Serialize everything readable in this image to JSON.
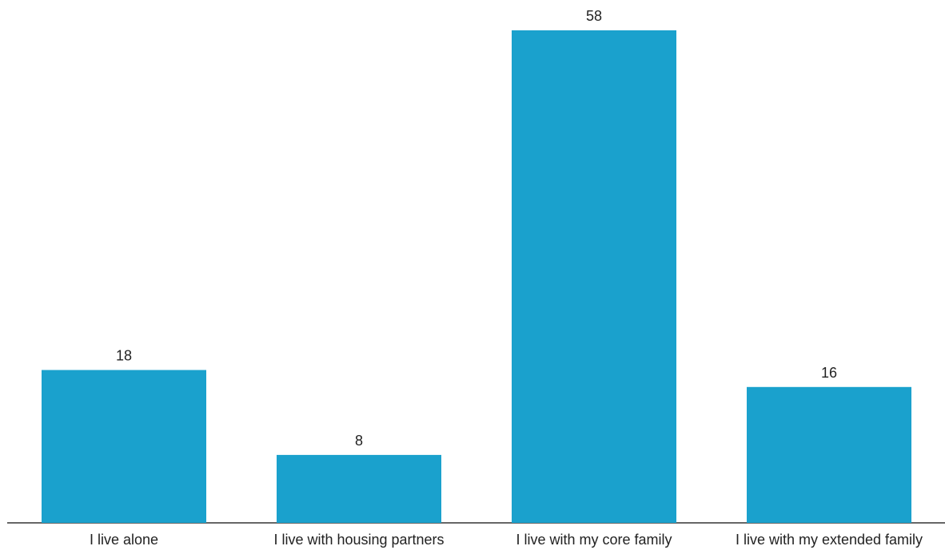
{
  "chart_data": {
    "type": "bar",
    "categories": [
      "I live alone",
      "I live with housing partners",
      "I live with my core family",
      "I live with my extended family"
    ],
    "values": [
      18,
      8,
      58,
      16
    ],
    "data_labels": [
      "18",
      "8",
      "58",
      "16"
    ],
    "title": "",
    "xlabel": "",
    "ylabel": "",
    "ylim": [
      0,
      58
    ],
    "grid": false,
    "legend": "none",
    "bar_color": "#1aa1cd",
    "axis_color": "#333333",
    "text_color": "#222222"
  }
}
